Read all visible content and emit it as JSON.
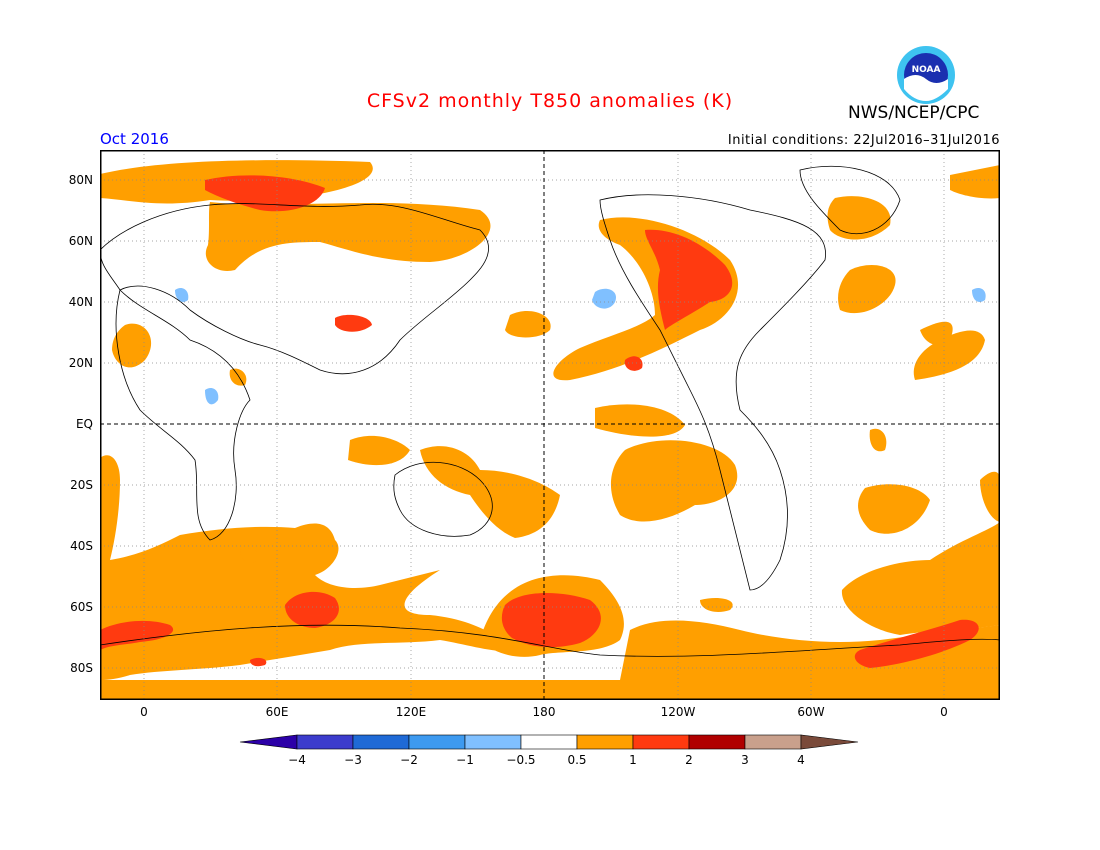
{
  "title": "CFSv2 monthly T850 anomalies (K)",
  "agency": "NWS/NCEP/CPC",
  "logo_text": "NOAA",
  "month": "Oct 2016",
  "initial_conditions": "Initial conditions: 22Jul2016–31Jul2016",
  "map": {
    "lat_labels": [
      "80N",
      "60N",
      "40N",
      "20N",
      "EQ",
      "20S",
      "40S",
      "60S",
      "80S"
    ],
    "lon_labels": [
      "0",
      "60E",
      "120E",
      "180",
      "120W",
      "60W",
      "0"
    ]
  },
  "legend": {
    "labels": [
      "−4",
      "−3",
      "−2",
      "−1",
      "−0.5",
      "0.5",
      "1",
      "2",
      "3",
      "4"
    ],
    "colors": [
      "#2c00a8",
      "#3c3ccc",
      "#1f6ad6",
      "#3d9af0",
      "#80c0ff",
      "#ffffff",
      "#ff9f00",
      "#ff3a10",
      "#b00000",
      "#c9a08c",
      "#7a4a3a"
    ]
  }
}
